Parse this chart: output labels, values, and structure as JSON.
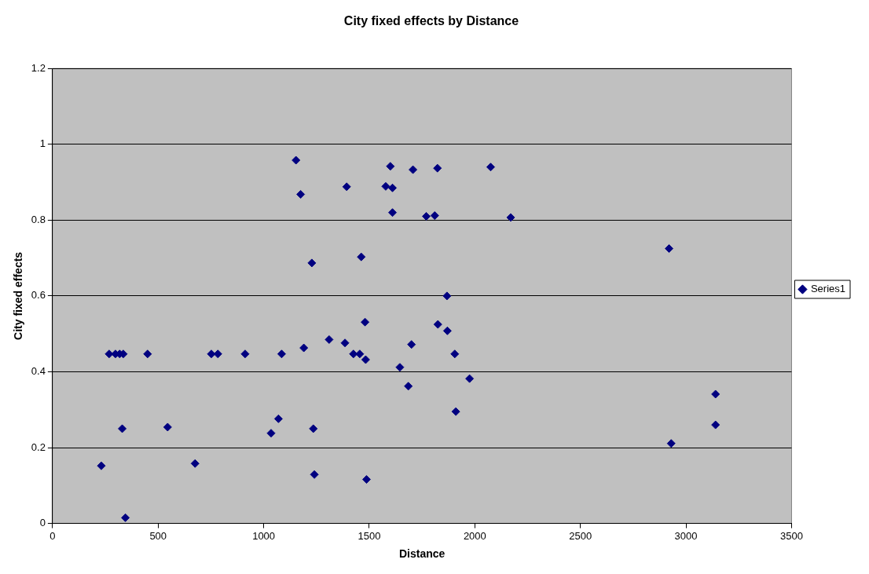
{
  "chart_data": {
    "type": "scatter",
    "title": "City fixed effects by Distance",
    "xlabel": "Distance",
    "ylabel": "City fixed effects",
    "x": [
      231,
      268,
      298,
      318,
      335,
      330,
      345,
      450,
      545,
      675,
      752,
      783,
      912,
      1035,
      1070,
      1085,
      1153,
      1175,
      1190,
      1228,
      1235,
      1240,
      1310,
      1385,
      1393,
      1425,
      1455,
      1462,
      1480,
      1483,
      1487,
      1578,
      1600,
      1610,
      1610,
      1645,
      1685,
      1700,
      1707,
      1770,
      1810,
      1823,
      1825,
      1868,
      1870,
      1905,
      1910,
      1975,
      2075,
      2170,
      2920,
      2930,
      3140,
      3140
    ],
    "series": [
      {
        "name": "Series1",
        "color": "#000080",
        "values": [
          0.152,
          0.447,
          0.447,
          0.447,
          0.447,
          0.25,
          0.015,
          0.447,
          0.254,
          0.158,
          0.447,
          0.447,
          0.447,
          0.238,
          0.276,
          0.447,
          0.958,
          0.868,
          0.463,
          0.687,
          0.25,
          0.129,
          0.485,
          0.476,
          0.888,
          0.447,
          0.447,
          0.703,
          0.531,
          0.432,
          0.116,
          0.889,
          0.942,
          0.885,
          0.82,
          0.412,
          0.362,
          0.472,
          0.933,
          0.81,
          0.812,
          0.937,
          0.525,
          0.6,
          0.508,
          0.447,
          0.295,
          0.382,
          0.94,
          0.807,
          0.725,
          0.211,
          0.341,
          0.26
        ]
      }
    ],
    "xlim": [
      0,
      3500
    ],
    "xticks": [
      0,
      500,
      1000,
      1500,
      2000,
      2500,
      3000,
      3500
    ],
    "ylim": [
      0,
      1.2
    ],
    "yticks": [
      0,
      0.2,
      0.4,
      0.6,
      0.8,
      1,
      1.2
    ],
    "grid": "y",
    "legend": "right",
    "marker": "diamond"
  }
}
